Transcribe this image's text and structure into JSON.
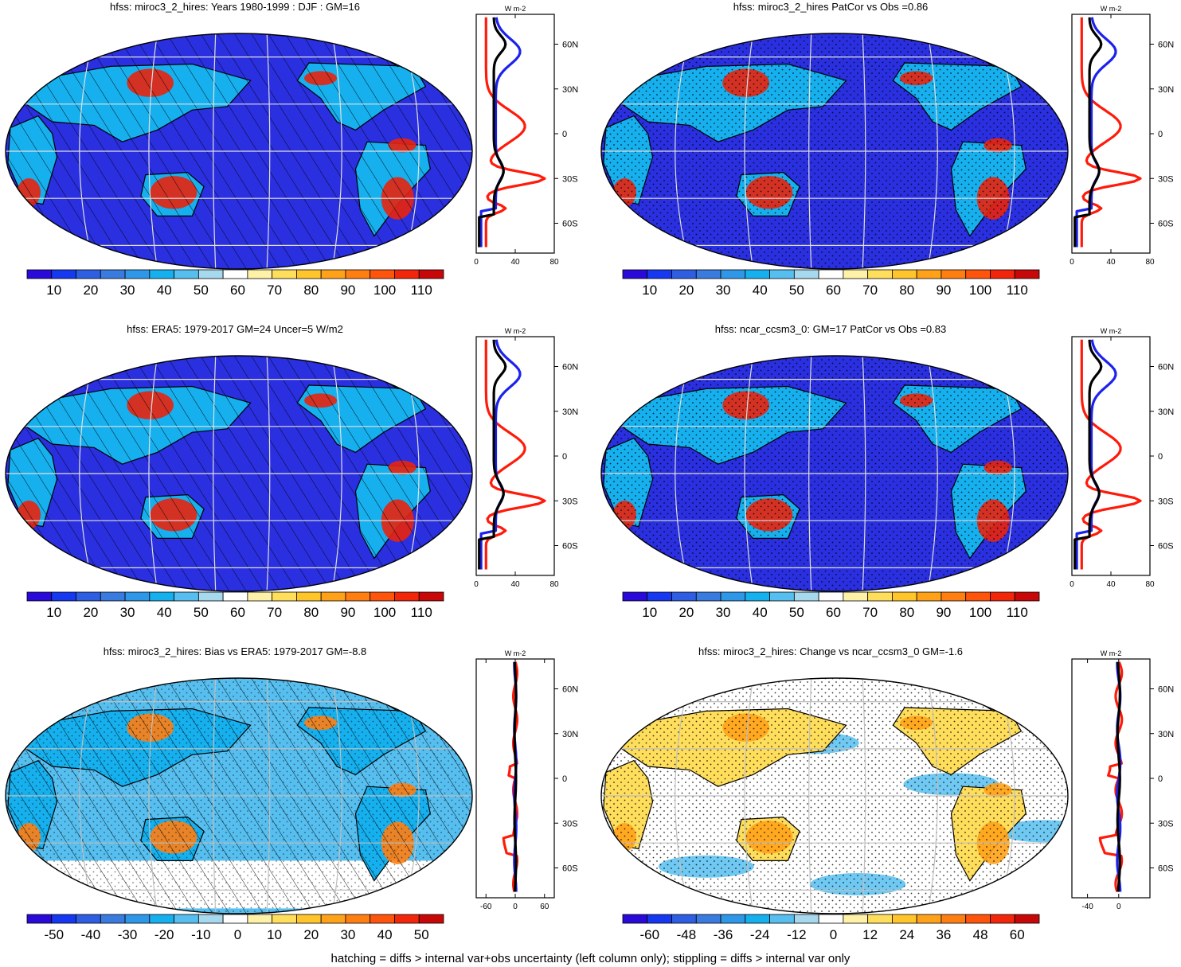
{
  "footer": "hatching = diffs > internal var+obs uncertainty (left column only); stippling = diffs > internal var only",
  "colors": {
    "scale": [
      "#2a0ad8",
      "#1638f0",
      "#2e5ee2",
      "#3a7be0",
      "#2f97e8",
      "#16b0ee",
      "#56bff0",
      "#a6d8ee",
      "#ffffff",
      "#fff2a8",
      "#ffde5c",
      "#ffc52a",
      "#ffa21a",
      "#ff7e12",
      "#ff540c",
      "#f2260a",
      "#c80808"
    ],
    "land_high": "#e8230c",
    "ocean": "#2a2fe0",
    "profile_model": "#1c22ee",
    "profile_obs": "#000000",
    "profile_diff": "#ff1a0a"
  },
  "panels": [
    {
      "title": "hfss: miroc3_2_hires: Years 1980-1999 : DJF : GM=16",
      "kind": "field",
      "hatching": true,
      "stippling": false,
      "colorbar_labels": [
        "10",
        "20",
        "30",
        "40",
        "50",
        "60",
        "70",
        "80",
        "90",
        "100",
        "110"
      ],
      "profile": {
        "unit": "W m-2",
        "lat_labels": [
          "60N",
          "30N",
          "0",
          "30S",
          "60S"
        ],
        "x_ticks": [
          "0",
          "40",
          "80"
        ],
        "xlim": [
          0,
          80
        ]
      }
    },
    {
      "title": "hfss: miroc3_2_hires PatCor vs Obs =0.86",
      "kind": "field",
      "hatching": false,
      "stippling": true,
      "colorbar_labels": [
        "10",
        "20",
        "30",
        "40",
        "50",
        "60",
        "70",
        "80",
        "90",
        "100",
        "110"
      ],
      "profile": {
        "unit": "W m-2",
        "lat_labels": [
          "60N",
          "30N",
          "0",
          "30S",
          "60S"
        ],
        "x_ticks": [
          "0",
          "40",
          "80"
        ],
        "xlim": [
          0,
          80
        ]
      }
    },
    {
      "title": "hfss: ERA5: 1979-2017 GM=24 Uncer=5 W/m2",
      "kind": "field",
      "hatching": true,
      "stippling": false,
      "colorbar_labels": [
        "10",
        "20",
        "30",
        "40",
        "50",
        "60",
        "70",
        "80",
        "90",
        "100",
        "110"
      ],
      "profile": {
        "unit": "W m-2",
        "lat_labels": [
          "60N",
          "30N",
          "0",
          "30S",
          "60S"
        ],
        "x_ticks": [
          "0",
          "40",
          "80"
        ],
        "xlim": [
          0,
          80
        ]
      }
    },
    {
      "title": "hfss: ncar_ccsm3_0: GM=17 PatCor vs Obs =0.83",
      "kind": "field",
      "hatching": false,
      "stippling": true,
      "colorbar_labels": [
        "10",
        "20",
        "30",
        "40",
        "50",
        "60",
        "70",
        "80",
        "90",
        "100",
        "110"
      ],
      "profile": {
        "unit": "W m-2",
        "lat_labels": [
          "60N",
          "30N",
          "0",
          "30S",
          "60S"
        ],
        "x_ticks": [
          "0",
          "40",
          "80"
        ],
        "xlim": [
          0,
          80
        ]
      }
    },
    {
      "title": "hfss: miroc3_2_hires: Bias vs ERA5: 1979-2017 GM=-8.8",
      "kind": "bias",
      "hatching": true,
      "stippling": true,
      "colorbar_labels": [
        "-50",
        "-40",
        "-30",
        "-20",
        "-10",
        "0",
        "10",
        "20",
        "30",
        "40",
        "50"
      ],
      "profile": {
        "unit": "W m-2",
        "lat_labels": [
          "60N",
          "30N",
          "0",
          "30S",
          "60S"
        ],
        "x_ticks": [
          "-60",
          "0",
          "60"
        ],
        "xlim": [
          -80,
          80
        ]
      }
    },
    {
      "title": "hfss: miroc3_2_hires: Change vs ncar_ccsm3_0 GM=-1.6",
      "kind": "change",
      "hatching": false,
      "stippling": true,
      "colorbar_labels": [
        "-60",
        "-48",
        "-36",
        "-24",
        "-12",
        "0",
        "12",
        "24",
        "36",
        "48",
        "60"
      ],
      "profile": {
        "unit": "W m-2",
        "lat_labels": [
          "60N",
          "30N",
          "0",
          "30S",
          "60S"
        ],
        "x_ticks": [
          "-40",
          "0"
        ],
        "xlim": [
          -60,
          40
        ]
      }
    }
  ]
}
